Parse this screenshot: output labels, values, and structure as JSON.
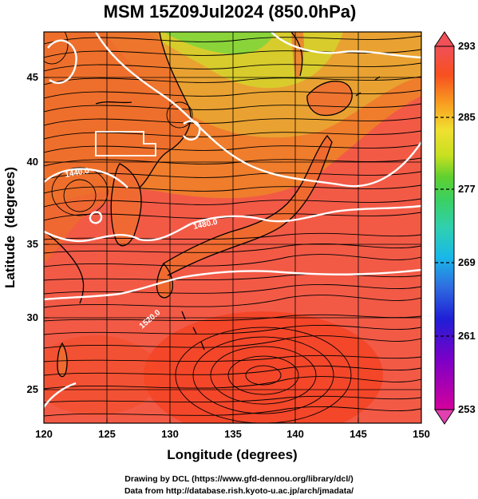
{
  "title": "MSM 15Z09Jul2024 (850.0hPa)",
  "xlabel": "Longitude (degrees)",
  "ylabel": "Latitude  (degrees)",
  "x_ticks": [
    "120",
    "125",
    "130",
    "135",
    "140",
    "145",
    "150"
  ],
  "y_ticks": [
    "25",
    "30",
    "35",
    "40",
    "45"
  ],
  "x_range": [
    120,
    150
  ],
  "y_range": [
    22.4,
    47.6
  ],
  "colorbar": {
    "ticks": [
      "293",
      "285",
      "277",
      "269",
      "261",
      "253"
    ],
    "range": [
      253,
      293
    ],
    "colors": [
      "#d4009c",
      "#7a00c8",
      "#1f1fd6",
      "#2f6fe0",
      "#18b8e8",
      "#2fd0b0",
      "#3cd060",
      "#60d030",
      "#c8e020",
      "#f0e030",
      "#f8a020",
      "#f85020",
      "#f05058"
    ]
  },
  "contour_labels": [
    "1440.0",
    "1480.0",
    "1520.0"
  ],
  "credit_line1": "Drawing by DCL (https://www.gfd-dennou.org/library/dcl/)",
  "credit_line2": "Data from http://database.rish.kyoto-u.ac.jp/arch/jmadata/",
  "map_colors": {
    "ocean_warm": "#f25a46",
    "land_warm": "#f07a2a",
    "north": "#e8a030",
    "cool_north": "#b8d030",
    "green": "#58d040"
  }
}
